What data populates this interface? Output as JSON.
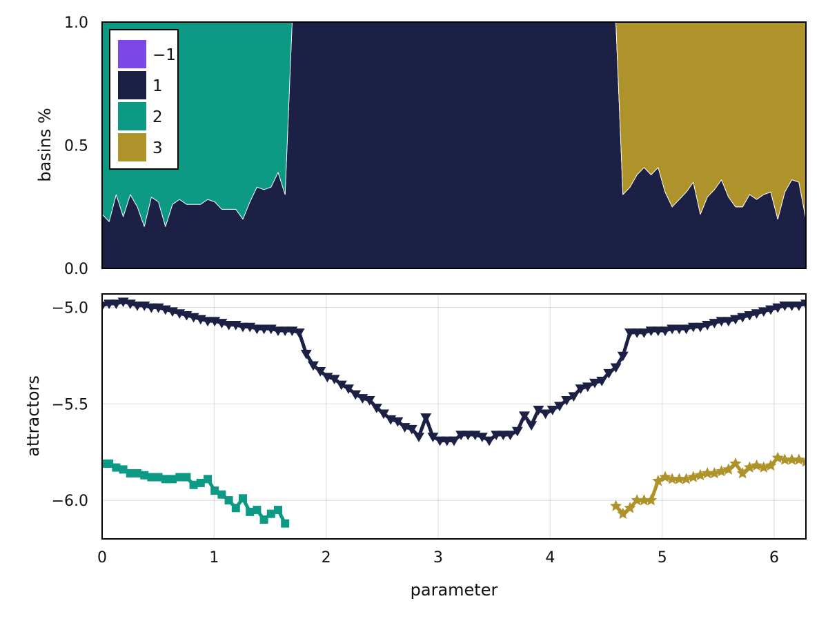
{
  "chart_data": [
    {
      "type": "area",
      "stacked": true,
      "normalized": true,
      "ylabel": "basins %",
      "xlim": [
        0,
        6.2832
      ],
      "ylim": [
        0,
        1
      ],
      "yticks": [
        "0.0",
        "0.5",
        "1.0"
      ],
      "show_x_ticklabels": false,
      "grid": false,
      "legend_position": "top-left",
      "colors": {
        "-1": "#7b47e6",
        "1": "#1c2045",
        "2": "#0c9a85",
        "3": "#ae922a"
      },
      "legend": [
        {
          "label": "-1",
          "color": "#7b47e6"
        },
        {
          "label": "1",
          "color": "#1c2045"
        },
        {
          "label": "2",
          "color": "#0c9a85"
        },
        {
          "label": "3",
          "color": "#ae922a"
        }
      ],
      "x": [
        0.0,
        0.0628,
        0.1257,
        0.1885,
        0.2513,
        0.3142,
        0.377,
        0.4398,
        0.5027,
        0.5655,
        0.6283,
        0.6912,
        0.754,
        0.8168,
        0.8796,
        0.9425,
        1.0053,
        1.0681,
        1.131,
        1.1938,
        1.2566,
        1.3195,
        1.3823,
        1.4451,
        1.508,
        1.5708,
        1.6336,
        1.6965,
        1.7593,
        1.8221,
        1.885,
        1.9478,
        2.0106,
        2.0735,
        2.1363,
        2.1991,
        2.2619,
        2.3248,
        2.3876,
        2.4504,
        2.5133,
        2.5761,
        2.6389,
        2.7018,
        2.7646,
        2.8274,
        2.8903,
        2.9531,
        3.0159,
        3.0788,
        3.1416,
        3.2044,
        3.2673,
        3.3301,
        3.3929,
        3.4558,
        3.5186,
        3.5814,
        3.6442,
        3.7071,
        3.7699,
        3.8327,
        3.8956,
        3.9584,
        4.0212,
        4.0841,
        4.1469,
        4.2097,
        4.2726,
        4.3354,
        4.3982,
        4.4611,
        4.5239,
        4.5867,
        4.6496,
        4.7124,
        4.7752,
        4.8381,
        4.9009,
        4.9637,
        5.0265,
        5.0894,
        5.1522,
        5.215,
        5.2779,
        5.3407,
        5.4035,
        5.4664,
        5.5292,
        5.592,
        5.6549,
        5.7177,
        5.7805,
        5.8434,
        5.9062,
        5.969,
        6.0319,
        6.0947,
        6.1575,
        6.2204,
        6.2832
      ],
      "series": [
        {
          "name": "-1",
          "values": [
            0.0,
            0.0,
            0.0,
            0.0,
            0.0,
            0.0,
            0.0,
            0.0,
            0.0,
            0.0,
            0.0,
            0.0,
            0.0,
            0.0,
            0.0,
            0.0,
            0.0,
            0.0,
            0.0,
            0.0,
            0.0,
            0.0,
            0.0,
            0.0,
            0.0,
            0.0,
            0.0,
            0.0,
            0.0,
            0.0,
            0.0,
            0.0,
            0.0,
            0.0,
            0.0,
            0.0,
            0.0,
            0.0,
            0.0,
            0.0,
            0.0,
            0.0,
            0.0,
            0.0,
            0.0,
            0.0,
            0.0,
            0.0,
            0.0,
            0.0,
            0.0,
            0.0,
            0.0,
            0.0,
            0.0,
            0.0,
            0.0,
            0.0,
            0.0,
            0.0,
            0.0,
            0.0,
            0.0,
            0.0,
            0.0,
            0.0,
            0.0,
            0.0,
            0.0,
            0.0,
            0.0,
            0.0,
            0.0,
            0.0,
            0.0,
            0.0,
            0.0,
            0.0,
            0.0,
            0.0,
            0.0,
            0.0,
            0.0,
            0.0,
            0.0,
            0.0,
            0.0,
            0.0,
            0.0,
            0.0,
            0.0,
            0.0,
            0.0,
            0.0,
            0.0,
            0.0,
            0.0,
            0.0,
            0.0,
            0.0,
            0.0
          ]
        },
        {
          "name": "1",
          "values": [
            0.22,
            0.19,
            0.3,
            0.21,
            0.3,
            0.25,
            0.17,
            0.29,
            0.27,
            0.17,
            0.26,
            0.28,
            0.26,
            0.26,
            0.26,
            0.28,
            0.27,
            0.24,
            0.24,
            0.24,
            0.2,
            0.27,
            0.33,
            0.32,
            0.33,
            0.39,
            0.3,
            1.0,
            1.0,
            1.0,
            1.0,
            1.0,
            1.0,
            1.0,
            1.0,
            1.0,
            1.0,
            1.0,
            1.0,
            1.0,
            1.0,
            1.0,
            1.0,
            1.0,
            1.0,
            1.0,
            1.0,
            1.0,
            1.0,
            1.0,
            1.0,
            1.0,
            1.0,
            1.0,
            1.0,
            1.0,
            1.0,
            1.0,
            1.0,
            1.0,
            1.0,
            1.0,
            1.0,
            1.0,
            1.0,
            1.0,
            1.0,
            1.0,
            1.0,
            1.0,
            1.0,
            1.0,
            1.0,
            1.0,
            0.3,
            0.33,
            0.38,
            0.41,
            0.38,
            0.41,
            0.31,
            0.25,
            0.28,
            0.31,
            0.35,
            0.22,
            0.29,
            0.32,
            0.36,
            0.29,
            0.25,
            0.25,
            0.3,
            0.28,
            0.3,
            0.31,
            0.2,
            0.31,
            0.36,
            0.35,
            0.2
          ]
        },
        {
          "name": "2",
          "values": [
            0.78,
            0.81,
            0.7,
            0.79,
            0.7,
            0.75,
            0.83,
            0.71,
            0.73,
            0.83,
            0.74,
            0.72,
            0.74,
            0.74,
            0.74,
            0.72,
            0.73,
            0.76,
            0.76,
            0.76,
            0.8,
            0.73,
            0.67,
            0.68,
            0.67,
            0.61,
            0.7,
            0.0,
            0.0,
            0.0,
            0.0,
            0.0,
            0.0,
            0.0,
            0.0,
            0.0,
            0.0,
            0.0,
            0.0,
            0.0,
            0.0,
            0.0,
            0.0,
            0.0,
            0.0,
            0.0,
            0.0,
            0.0,
            0.0,
            0.0,
            0.0,
            0.0,
            0.0,
            0.0,
            0.0,
            0.0,
            0.0,
            0.0,
            0.0,
            0.0,
            0.0,
            0.0,
            0.0,
            0.0,
            0.0,
            0.0,
            0.0,
            0.0,
            0.0,
            0.0,
            0.0,
            0.0,
            0.0,
            0.0,
            0.0,
            0.0,
            0.0,
            0.0,
            0.0,
            0.0,
            0.0,
            0.0,
            0.0,
            0.0,
            0.0,
            0.0,
            0.0,
            0.0,
            0.0,
            0.0,
            0.0,
            0.0,
            0.0,
            0.0,
            0.0,
            0.0,
            0.0,
            0.0,
            0.0,
            0.0,
            0.0
          ]
        },
        {
          "name": "3",
          "values": [
            0.0,
            0.0,
            0.0,
            0.0,
            0.0,
            0.0,
            0.0,
            0.0,
            0.0,
            0.0,
            0.0,
            0.0,
            0.0,
            0.0,
            0.0,
            0.0,
            0.0,
            0.0,
            0.0,
            0.0,
            0.0,
            0.0,
            0.0,
            0.0,
            0.0,
            0.0,
            0.0,
            0.0,
            0.0,
            0.0,
            0.0,
            0.0,
            0.0,
            0.0,
            0.0,
            0.0,
            0.0,
            0.0,
            0.0,
            0.0,
            0.0,
            0.0,
            0.0,
            0.0,
            0.0,
            0.0,
            0.0,
            0.0,
            0.0,
            0.0,
            0.0,
            0.0,
            0.0,
            0.0,
            0.0,
            0.0,
            0.0,
            0.0,
            0.0,
            0.0,
            0.0,
            0.0,
            0.0,
            0.0,
            0.0,
            0.0,
            0.0,
            0.0,
            0.0,
            0.0,
            0.0,
            0.0,
            0.0,
            0.0,
            0.7,
            0.67,
            0.62,
            0.59,
            0.62,
            0.59,
            0.69,
            0.75,
            0.72,
            0.69,
            0.65,
            0.78,
            0.71,
            0.68,
            0.64,
            0.71,
            0.75,
            0.75,
            0.7,
            0.72,
            0.7,
            0.69,
            0.8,
            0.69,
            0.64,
            0.65,
            0.8
          ]
        }
      ]
    },
    {
      "type": "line",
      "ylabel": "attractors",
      "xlabel": "parameter",
      "xlim": [
        0,
        6.2832
      ],
      "ylim": [
        -6.2,
        -4.93
      ],
      "xticks": [
        "0",
        "1",
        "2",
        "3",
        "4",
        "5",
        "6"
      ],
      "yticks": [
        "-5.0",
        "-5.5",
        "-6.0"
      ],
      "grid": true,
      "series": [
        {
          "attractor": "1",
          "marker": "triangle-down",
          "color": "#1c2045",
          "x": [
            0.0,
            0.0628,
            0.1257,
            0.1885,
            0.2513,
            0.3142,
            0.377,
            0.4398,
            0.5027,
            0.5655,
            0.6283,
            0.6912,
            0.754,
            0.8168,
            0.8796,
            0.9425,
            1.0053,
            1.0681,
            1.131,
            1.1938,
            1.2566,
            1.3195,
            1.3823,
            1.4451,
            1.508,
            1.5708,
            1.6336,
            1.6965,
            1.7593,
            1.8221,
            1.885,
            1.9478,
            2.0106,
            2.0735,
            2.1363,
            2.1991,
            2.2619,
            2.3248,
            2.3876,
            2.4504,
            2.5133,
            2.5761,
            2.6389,
            2.7018,
            2.7646,
            2.8274,
            2.8903,
            2.9531,
            3.0159,
            3.0788,
            3.1416,
            3.2044,
            3.2673,
            3.3301,
            3.3929,
            3.4558,
            3.5186,
            3.5814,
            3.6442,
            3.7071,
            3.7699,
            3.8327,
            3.8956,
            3.9584,
            4.0212,
            4.0841,
            4.1469,
            4.2097,
            4.2726,
            4.3354,
            4.3982,
            4.4611,
            4.5239,
            4.5867,
            4.6496,
            4.7124,
            4.7752,
            4.8381,
            4.9009,
            4.9637,
            5.0265,
            5.0894,
            5.1522,
            5.215,
            5.2779,
            5.3407,
            5.4035,
            5.4664,
            5.5292,
            5.592,
            5.6549,
            5.7177,
            5.7805,
            5.8434,
            5.9062,
            5.969,
            6.0319,
            6.0947,
            6.1575,
            6.2204,
            6.2832
          ],
          "y": [
            -4.99,
            -4.98,
            -4.98,
            -4.97,
            -4.98,
            -4.99,
            -4.99,
            -5.0,
            -5.0,
            -5.01,
            -5.02,
            -5.03,
            -5.04,
            -5.05,
            -5.06,
            -5.07,
            -5.07,
            -5.08,
            -5.09,
            -5.09,
            -5.1,
            -5.1,
            -5.11,
            -5.11,
            -5.11,
            -5.12,
            -5.12,
            -5.12,
            -5.13,
            -5.24,
            -5.3,
            -5.33,
            -5.36,
            -5.37,
            -5.4,
            -5.42,
            -5.45,
            -5.47,
            -5.48,
            -5.52,
            -5.55,
            -5.58,
            -5.59,
            -5.62,
            -5.63,
            -5.67,
            -5.57,
            -5.67,
            -5.69,
            -5.69,
            -5.69,
            -5.66,
            -5.66,
            -5.66,
            -5.67,
            -5.69,
            -5.66,
            -5.66,
            -5.66,
            -5.64,
            -5.56,
            -5.61,
            -5.53,
            -5.55,
            -5.53,
            -5.51,
            -5.48,
            -5.46,
            -5.42,
            -5.41,
            -5.39,
            -5.38,
            -5.34,
            -5.31,
            -5.25,
            -5.13,
            -5.13,
            -5.13,
            -5.12,
            -5.12,
            -5.12,
            -5.11,
            -5.11,
            -5.11,
            -5.1,
            -5.1,
            -5.09,
            -5.08,
            -5.07,
            -5.07,
            -5.06,
            -5.05,
            -5.04,
            -5.03,
            -5.02,
            -5.01,
            -5.0,
            -4.99,
            -4.99,
            -4.99,
            -4.98
          ]
        },
        {
          "attractor": "2",
          "marker": "square",
          "color": "#0c9a85",
          "x": [
            0.0,
            0.0628,
            0.1257,
            0.1885,
            0.2513,
            0.3142,
            0.377,
            0.4398,
            0.5027,
            0.5655,
            0.6283,
            0.6912,
            0.754,
            0.8168,
            0.8796,
            0.9425,
            1.0053,
            1.0681,
            1.131,
            1.1938,
            1.2566,
            1.3195,
            1.3823,
            1.4451,
            1.508,
            1.5708,
            1.6336
          ],
          "y": [
            -5.81,
            -5.81,
            -5.83,
            -5.84,
            -5.86,
            -5.86,
            -5.87,
            -5.88,
            -5.88,
            -5.89,
            -5.89,
            -5.88,
            -5.88,
            -5.92,
            -5.91,
            -5.89,
            -5.95,
            -5.97,
            -6.0,
            -6.04,
            -5.99,
            -6.06,
            -6.05,
            -6.1,
            -6.07,
            -6.05,
            -6.12
          ]
        },
        {
          "attractor": "3",
          "marker": "star",
          "color": "#ae922a",
          "x": [
            4.5867,
            4.6496,
            4.7124,
            4.7752,
            4.8381,
            4.9009,
            4.9637,
            5.0265,
            5.0894,
            5.1522,
            5.215,
            5.2779,
            5.3407,
            5.4035,
            5.4664,
            5.5292,
            5.592,
            5.6549,
            5.7177,
            5.7805,
            5.8434,
            5.9062,
            5.969,
            6.0319,
            6.0947,
            6.1575,
            6.2204,
            6.2832
          ],
          "y": [
            -6.03,
            -6.07,
            -6.04,
            -6.0,
            -6.0,
            -6.0,
            -5.9,
            -5.88,
            -5.89,
            -5.89,
            -5.89,
            -5.88,
            -5.87,
            -5.86,
            -5.86,
            -5.85,
            -5.84,
            -5.81,
            -5.86,
            -5.83,
            -5.82,
            -5.83,
            -5.82,
            -5.78,
            -5.79,
            -5.79,
            -5.79,
            -5.8
          ]
        }
      ]
    }
  ]
}
